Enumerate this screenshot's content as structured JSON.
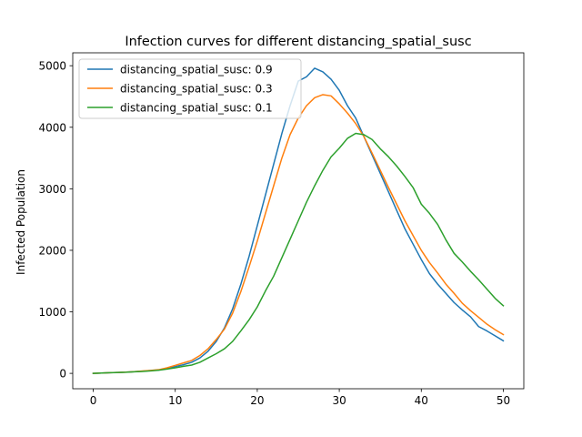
{
  "chart_data": {
    "type": "line",
    "title": "Infection curves for different distancing_spatial_susc",
    "xlabel": "",
    "ylabel": "Infected Population",
    "xlim": [
      -2.5,
      52.5
    ],
    "ylim": [
      -250,
      5210
    ],
    "xticks": [
      0,
      10,
      20,
      30,
      40,
      50
    ],
    "yticks": [
      0,
      1000,
      2000,
      3000,
      4000,
      5000
    ],
    "grid": false,
    "legend_position": "top-left",
    "x": [
      0,
      1,
      2,
      3,
      4,
      5,
      6,
      7,
      8,
      9,
      10,
      11,
      12,
      13,
      14,
      15,
      16,
      17,
      18,
      19,
      20,
      21,
      22,
      23,
      24,
      25,
      26,
      27,
      28,
      29,
      30,
      31,
      32,
      33,
      34,
      35,
      36,
      37,
      38,
      39,
      40,
      41,
      42,
      43,
      44,
      45,
      46,
      47,
      48,
      49,
      50
    ],
    "series": [
      {
        "name": "distancing_spatial_susc: 0.9",
        "color": "#1f77b4",
        "values": [
          0,
          5,
          10,
          15,
          20,
          28,
          35,
          45,
          55,
          80,
          110,
          140,
          180,
          250,
          360,
          520,
          740,
          1050,
          1450,
          1900,
          2400,
          2900,
          3400,
          3900,
          4350,
          4750,
          4820,
          4960,
          4900,
          4780,
          4600,
          4350,
          4150,
          3850,
          3550,
          3250,
          2950,
          2650,
          2350,
          2100,
          1850,
          1620,
          1450,
          1300,
          1150,
          1030,
          920,
          760,
          690,
          610,
          530
        ]
      },
      {
        "name": "distancing_spatial_susc: 0.3",
        "color": "#ff7f0e",
        "values": [
          0,
          5,
          10,
          15,
          20,
          28,
          38,
          48,
          60,
          90,
          130,
          170,
          210,
          290,
          400,
          550,
          720,
          980,
          1330,
          1730,
          2150,
          2600,
          3050,
          3500,
          3880,
          4150,
          4350,
          4480,
          4530,
          4510,
          4380,
          4230,
          4060,
          3850,
          3580,
          3300,
          3020,
          2750,
          2480,
          2240,
          2000,
          1800,
          1630,
          1450,
          1300,
          1140,
          1020,
          910,
          800,
          710,
          630
        ]
      },
      {
        "name": "distancing_spatial_susc: 0.1",
        "color": "#2ca02c",
        "values": [
          0,
          5,
          10,
          14,
          18,
          25,
          32,
          40,
          52,
          70,
          90,
          115,
          135,
          180,
          250,
          320,
          400,
          520,
          690,
          870,
          1080,
          1340,
          1580,
          1880,
          2180,
          2480,
          2780,
          3050,
          3300,
          3520,
          3660,
          3820,
          3900,
          3880,
          3800,
          3650,
          3520,
          3370,
          3200,
          3020,
          2750,
          2600,
          2420,
          2170,
          1950,
          1810,
          1660,
          1520,
          1370,
          1220,
          1100
        ]
      }
    ]
  }
}
